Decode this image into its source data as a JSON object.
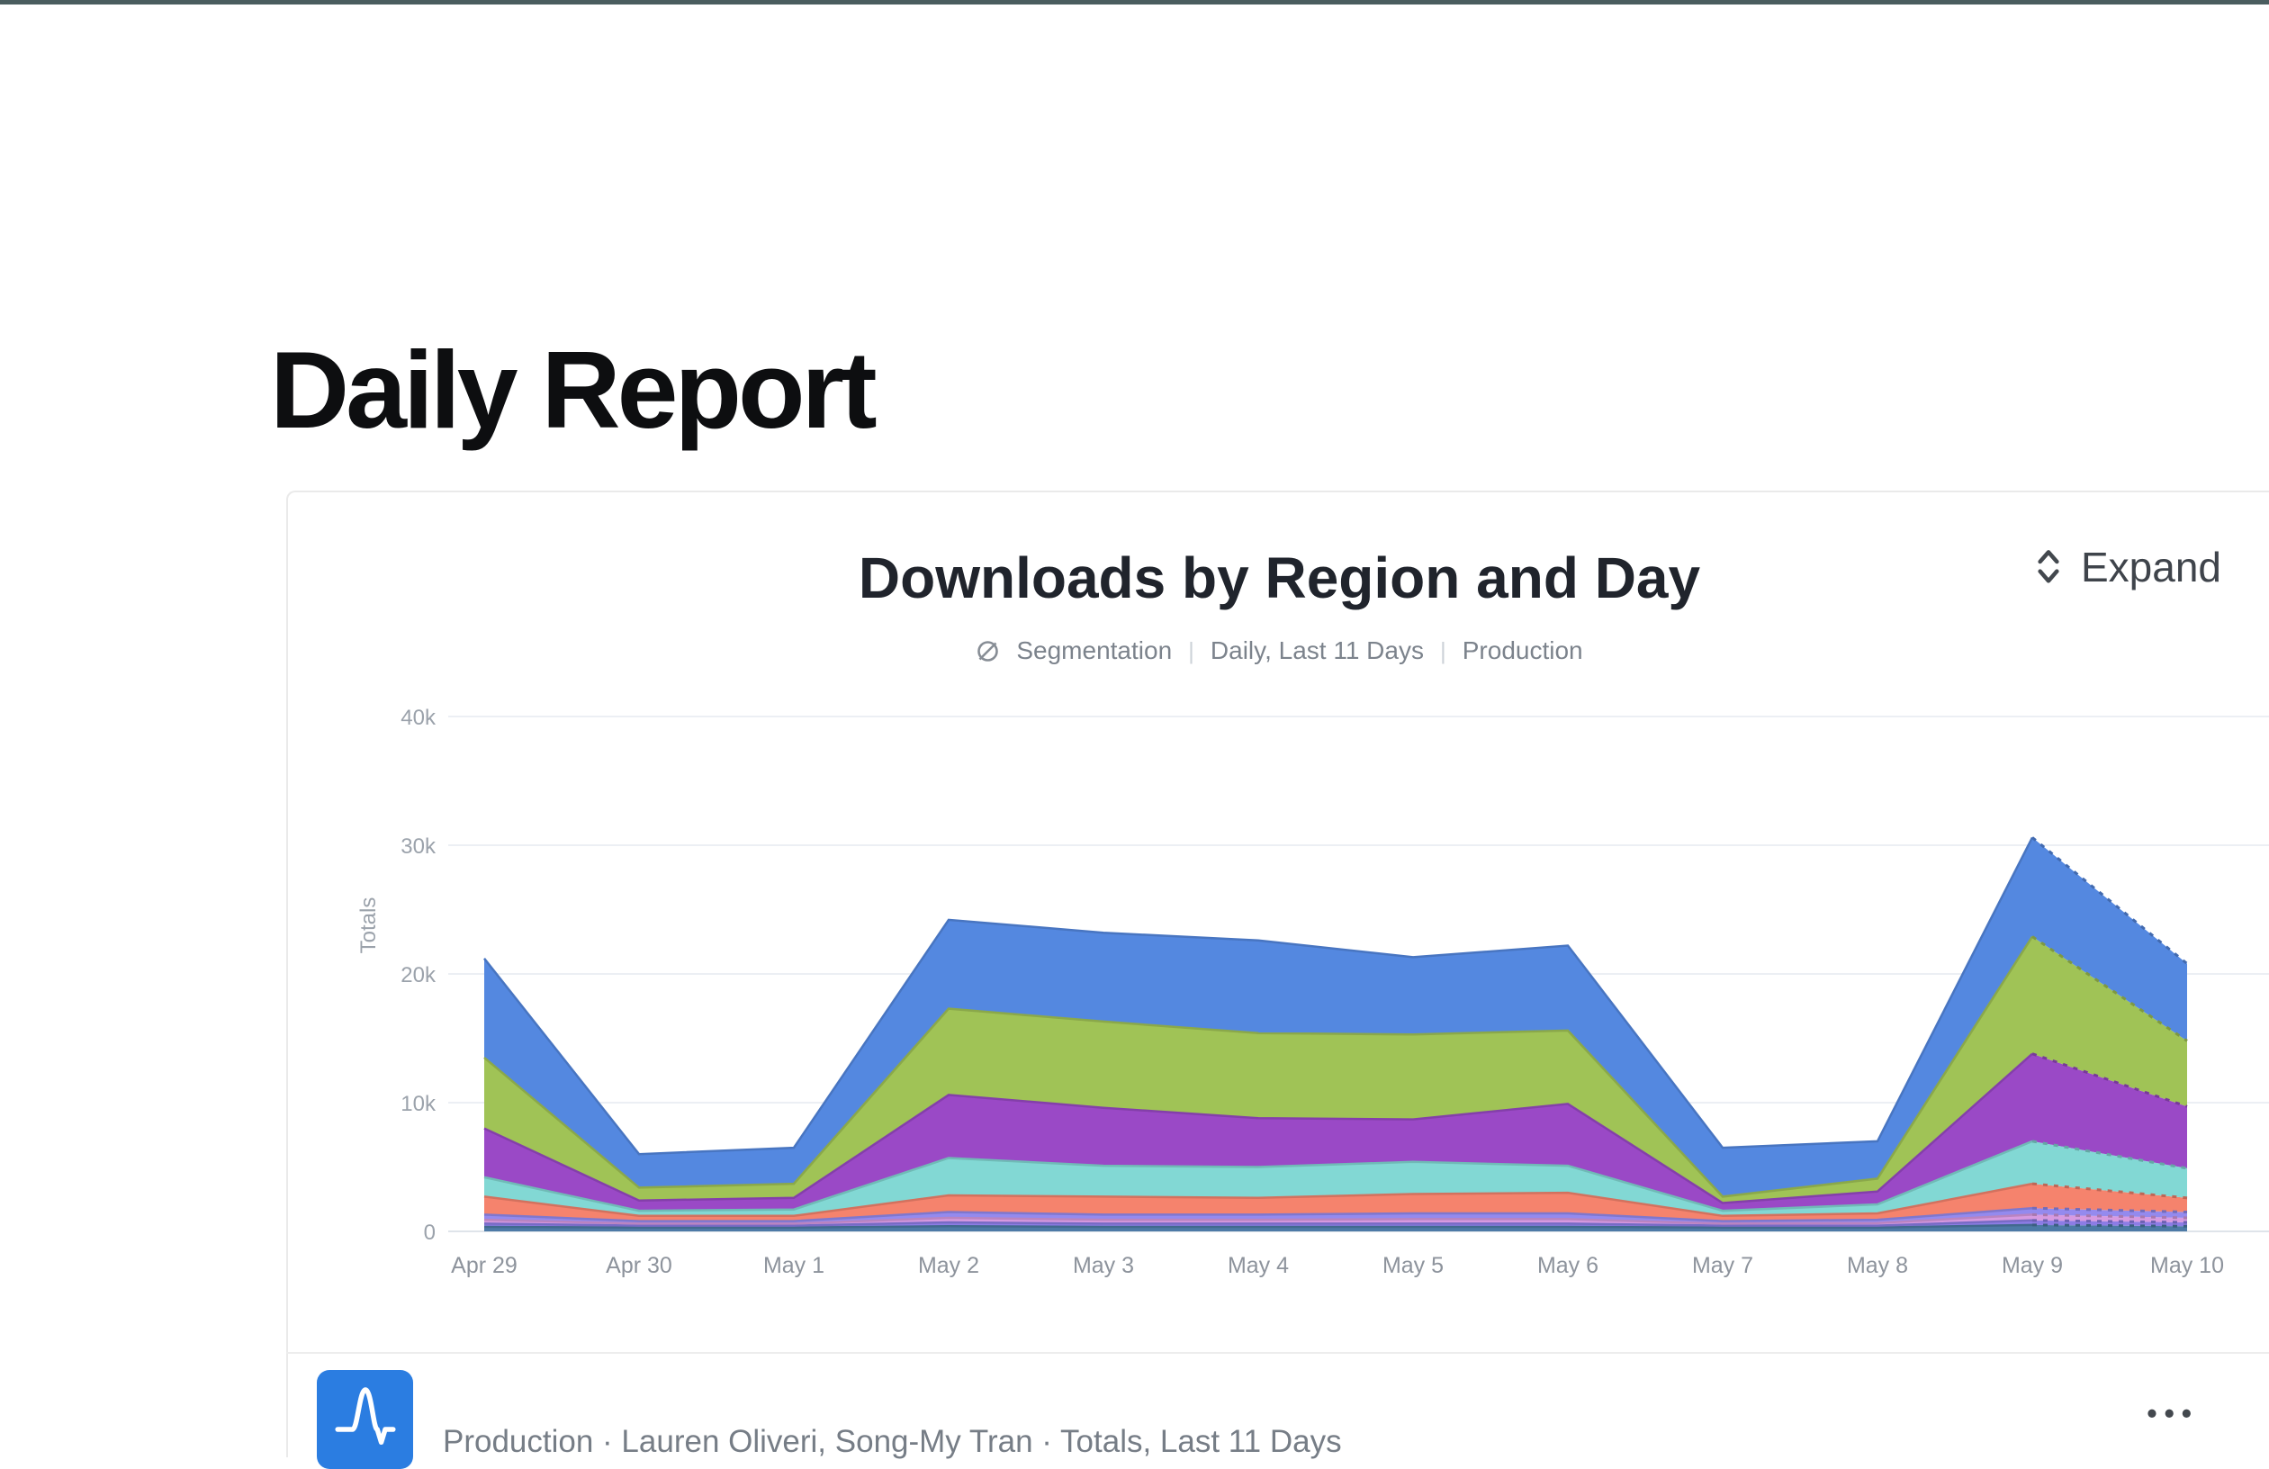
{
  "page": {
    "title": "Daily Report",
    "accent_bar_color": "#4a5d5f"
  },
  "card": {
    "title": "Downloads by Region and Day",
    "subtitle": {
      "icon": "segmentation-icon",
      "chart_type": "Segmentation",
      "separator": "|",
      "date_range": "Daily, Last 11 Days",
      "environment": "Production"
    },
    "expand": {
      "icon": "expand-vertical-icon",
      "label": "Expand"
    },
    "footer": {
      "icon": "amplitude-logo-icon",
      "icon_color": "#2b7de1",
      "source_line": "Production · Lauren Oliveri, Song-My Tran · Totals, Last 11 Days",
      "more_label": "•••"
    }
  },
  "chart_data": {
    "type": "area",
    "stacked": true,
    "title": "Downloads by Region and Day",
    "xlabel": "",
    "ylabel": "Totals",
    "grid": true,
    "legend_position": "none",
    "ylim": [
      0,
      42000
    ],
    "y_ticks": [
      {
        "label": "0",
        "value": 0
      },
      {
        "label": "10k",
        "value": 10000
      },
      {
        "label": "20k",
        "value": 20000
      },
      {
        "label": "30k",
        "value": 30000
      },
      {
        "label": "40k",
        "value": 40000
      }
    ],
    "x": [
      "Apr 29",
      "Apr 30",
      "May 1",
      "May 2",
      "May 3",
      "May 4",
      "May 5",
      "May 6",
      "May 7",
      "May 8",
      "May 9",
      "May 10"
    ],
    "last_segment_incomplete": true,
    "series": [
      {
        "name": "steel-blue",
        "color": "#4d7aa6",
        "values": [
          350,
          300,
          300,
          400,
          350,
          350,
          350,
          350,
          300,
          300,
          500,
          400
        ]
      },
      {
        "name": "violet",
        "color": "#8c7ce5",
        "values": [
          250,
          150,
          150,
          300,
          250,
          250,
          250,
          250,
          150,
          150,
          350,
          300
        ]
      },
      {
        "name": "orchid-pink",
        "color": "#d79ae0",
        "values": [
          300,
          150,
          150,
          350,
          300,
          300,
          350,
          350,
          150,
          200,
          450,
          350
        ]
      },
      {
        "name": "periwinkle",
        "color": "#948aee",
        "values": [
          400,
          200,
          200,
          450,
          400,
          400,
          450,
          450,
          200,
          250,
          500,
          450
        ]
      },
      {
        "name": "salmon",
        "color": "#f5836d",
        "values": [
          1400,
          400,
          400,
          1300,
          1400,
          1300,
          1500,
          1600,
          400,
          500,
          1900,
          1100
        ]
      },
      {
        "name": "teal",
        "color": "#82d8d4",
        "values": [
          1500,
          400,
          500,
          2900,
          2400,
          2400,
          2500,
          2100,
          400,
          700,
          3300,
          2300
        ]
      },
      {
        "name": "purple",
        "color": "#9a49c6",
        "values": [
          3800,
          800,
          900,
          4900,
          4500,
          3800,
          3300,
          4800,
          600,
          1000,
          6800,
          4800
        ]
      },
      {
        "name": "green",
        "color": "#a0c356",
        "values": [
          5500,
          1000,
          1100,
          6700,
          6700,
          6600,
          6600,
          5700,
          500,
          1000,
          9100,
          5100
        ]
      },
      {
        "name": "blue",
        "color": "#5488e0",
        "values": [
          7700,
          2600,
          2800,
          6900,
          6900,
          7200,
          6000,
          6600,
          3800,
          2900,
          7700,
          6000
        ]
      }
    ]
  }
}
